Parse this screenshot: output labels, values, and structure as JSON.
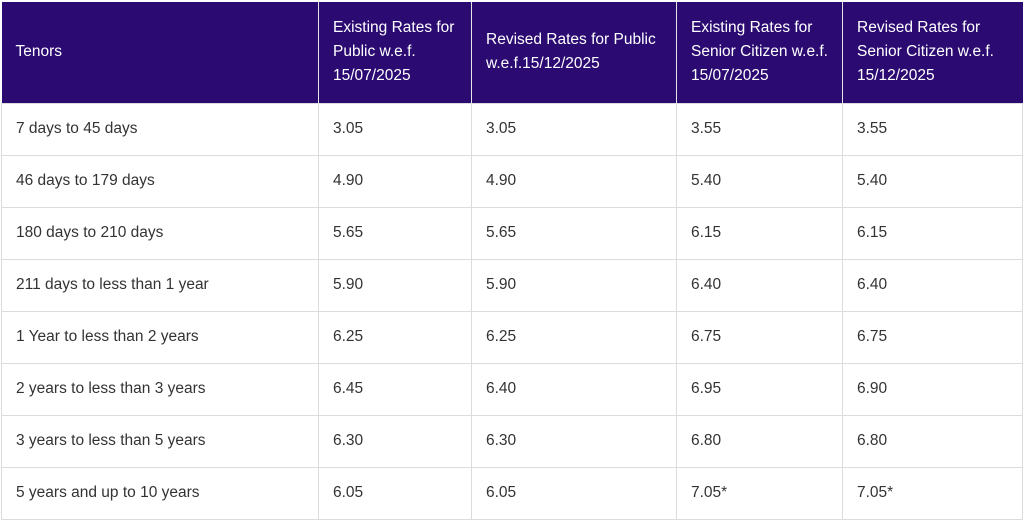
{
  "table": {
    "header": [
      "Tenors",
      "Existing Rates for Public w.e.f. 15/07/2025",
      "Revised Rates for Public w.e.f.15/12/2025",
      "Existing Rates for Senior Citizen w.e.f. 15/07/2025",
      "Revised Rates for Senior Citizen w.e.f. 15/12/2025"
    ],
    "rows": [
      [
        "7 days to 45 days",
        "3.05",
        "3.05",
        "3.55",
        "3.55"
      ],
      [
        "46 days to 179 days",
        "4.90",
        "4.90",
        "5.40",
        "5.40"
      ],
      [
        "180 days to 210 days",
        "5.65",
        "5.65",
        "6.15",
        "6.15"
      ],
      [
        "211 days to less than 1 year",
        "5.90",
        "5.90",
        "6.40",
        "6.40"
      ],
      [
        "1 Year to less than 2 years",
        "6.25",
        "6.25",
        "6.75",
        "6.75"
      ],
      [
        "2 years to less than 3 years",
        "6.45",
        "6.40",
        "6.95",
        "6.90"
      ],
      [
        "3 years to less than 5 years",
        "6.30",
        "6.30",
        "6.80",
        "6.80"
      ],
      [
        "5 years and up to 10 years",
        "6.05",
        "6.05",
        "7.05*",
        "7.05*"
      ]
    ]
  }
}
